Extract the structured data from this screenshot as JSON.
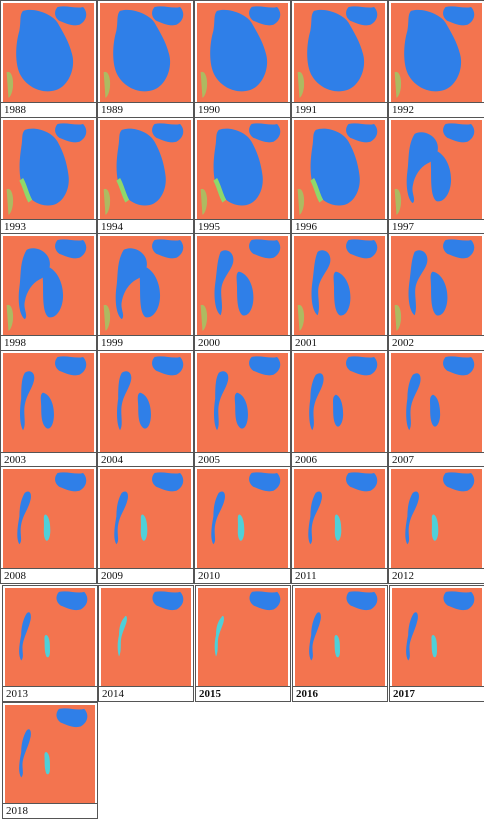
{
  "figure": {
    "panels": [
      {
        "year": "1988",
        "stage": 0
      },
      {
        "year": "1989",
        "stage": 0
      },
      {
        "year": "1990",
        "stage": 0
      },
      {
        "year": "1991",
        "stage": 0
      },
      {
        "year": "1992",
        "stage": 0
      },
      {
        "year": "1993",
        "stage": 1
      },
      {
        "year": "1994",
        "stage": 1
      },
      {
        "year": "1995",
        "stage": 1
      },
      {
        "year": "1996",
        "stage": 1
      },
      {
        "year": "1997",
        "stage": 2
      },
      {
        "year": "1998",
        "stage": 2
      },
      {
        "year": "1999",
        "stage": 2
      },
      {
        "year": "2000",
        "stage": 3
      },
      {
        "year": "2001",
        "stage": 3
      },
      {
        "year": "2002",
        "stage": 3
      },
      {
        "year": "2003",
        "stage": 4
      },
      {
        "year": "2004",
        "stage": 4
      },
      {
        "year": "2005",
        "stage": 4
      },
      {
        "year": "2006",
        "stage": 5
      },
      {
        "year": "2007",
        "stage": 5
      },
      {
        "year": "2008",
        "stage": 6
      },
      {
        "year": "2009",
        "stage": 6
      },
      {
        "year": "2010",
        "stage": 6
      },
      {
        "year": "2011",
        "stage": 6
      },
      {
        "year": "2012",
        "stage": 6
      },
      {
        "year": "2013",
        "stage": 7
      },
      {
        "year": "2014",
        "stage": 8
      },
      {
        "year": "2015",
        "stage": 8
      },
      {
        "year": "2016",
        "stage": 7
      },
      {
        "year": "2017",
        "stage": 7
      },
      {
        "year": "2018",
        "stage": 7
      }
    ],
    "colors": {
      "water": "#2f7fe8",
      "land": "#f3744f",
      "green": "#8fd86a",
      "cyan": "#4fd0d8"
    }
  }
}
